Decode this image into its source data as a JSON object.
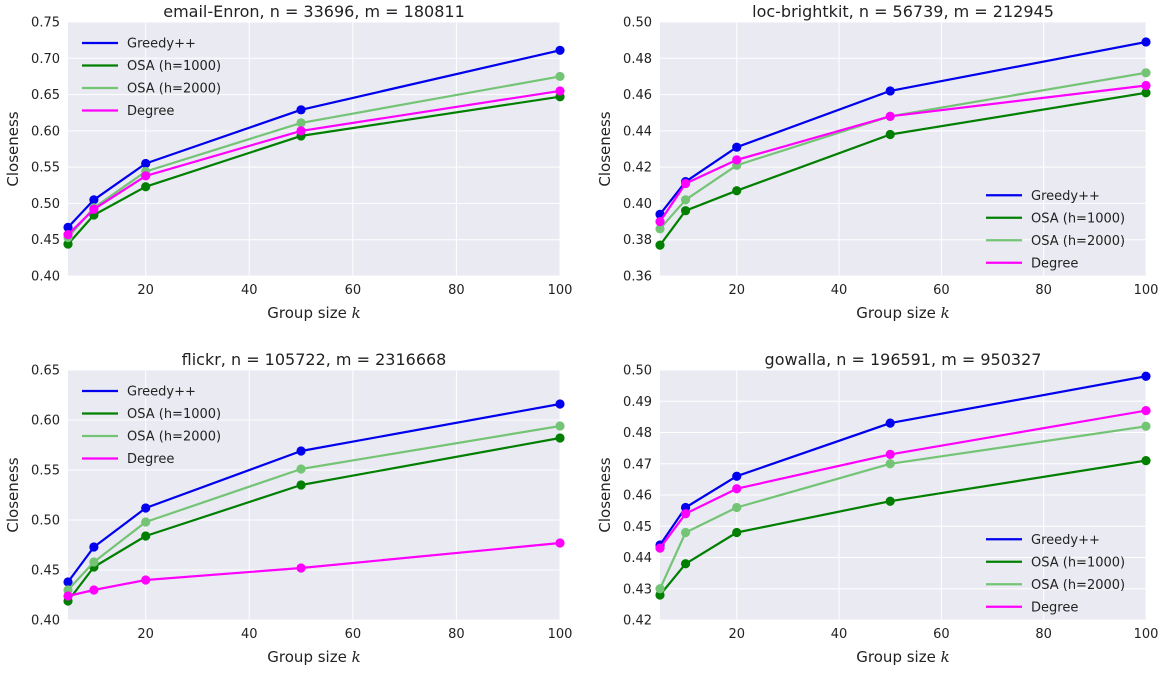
{
  "chart_data": [
    {
      "type": "line",
      "title": "email-Enron,  n = 33696, m = 180811",
      "xlabel": "Group size",
      "xlabel_var": "k",
      "ylabel": "Closeness",
      "xlim": [
        5,
        100
      ],
      "ylim": [
        0.4,
        0.75
      ],
      "xticks": [
        "20",
        "40",
        "60",
        "80",
        "100"
      ],
      "yticks": [
        "0.40",
        "0.45",
        "0.50",
        "0.55",
        "0.60",
        "0.65",
        "0.70",
        "0.75"
      ],
      "grid": true,
      "legend_position": "top-left",
      "x": [
        5,
        10,
        20,
        50,
        100
      ],
      "series": [
        {
          "name": "Greedy++",
          "color": "#0000ee",
          "values": [
            0.467,
            0.505,
            0.555,
            0.629,
            0.711
          ]
        },
        {
          "name": "OSA (h=1000)",
          "color": "#007f00",
          "values": [
            0.444,
            0.484,
            0.523,
            0.593,
            0.647
          ]
        },
        {
          "name": "OSA (h=2000)",
          "color": "#74c476",
          "values": [
            0.453,
            0.494,
            0.544,
            0.611,
            0.675
          ]
        },
        {
          "name": "Degree",
          "color": "#ff00ff",
          "values": [
            0.457,
            0.492,
            0.538,
            0.6,
            0.655
          ]
        }
      ]
    },
    {
      "type": "line",
      "title": "loc-brightkit,  n = 56739, m = 212945",
      "xlabel": "Group size",
      "xlabel_var": "k",
      "ylabel": "Closeness",
      "xlim": [
        5,
        100
      ],
      "ylim": [
        0.36,
        0.5
      ],
      "xticks": [
        "20",
        "40",
        "60",
        "80",
        "100"
      ],
      "yticks": [
        "0.36",
        "0.38",
        "0.40",
        "0.42",
        "0.44",
        "0.46",
        "0.48",
        "0.50"
      ],
      "grid": true,
      "legend_position": "bottom-right",
      "x": [
        5,
        10,
        20,
        50,
        100
      ],
      "series": [
        {
          "name": "Greedy++",
          "color": "#0000ee",
          "values": [
            0.394,
            0.412,
            0.431,
            0.462,
            0.489
          ]
        },
        {
          "name": "OSA (h=1000)",
          "color": "#007f00",
          "values": [
            0.377,
            0.396,
            0.407,
            0.438,
            0.461
          ]
        },
        {
          "name": "OSA (h=2000)",
          "color": "#74c476",
          "values": [
            0.386,
            0.402,
            0.421,
            0.448,
            0.472
          ]
        },
        {
          "name": "Degree",
          "color": "#ff00ff",
          "values": [
            0.39,
            0.411,
            0.424,
            0.448,
            0.465
          ]
        }
      ]
    },
    {
      "type": "line",
      "title": "flickr,  n = 105722, m = 2316668",
      "xlabel": "Group size",
      "xlabel_var": "k",
      "ylabel": "Closeness",
      "xlim": [
        5,
        100
      ],
      "ylim": [
        0.4,
        0.65
      ],
      "xticks": [
        "20",
        "40",
        "60",
        "80",
        "100"
      ],
      "yticks": [
        "0.40",
        "0.45",
        "0.50",
        "0.55",
        "0.60",
        "0.65"
      ],
      "grid": true,
      "legend_position": "top-left",
      "x": [
        5,
        10,
        20,
        50,
        100
      ],
      "series": [
        {
          "name": "Greedy++",
          "color": "#0000ee",
          "values": [
            0.438,
            0.473,
            0.512,
            0.569,
            0.616
          ]
        },
        {
          "name": "OSA (h=1000)",
          "color": "#007f00",
          "values": [
            0.419,
            0.453,
            0.484,
            0.535,
            0.582
          ]
        },
        {
          "name": "OSA (h=2000)",
          "color": "#74c476",
          "values": [
            0.43,
            0.458,
            0.498,
            0.551,
            0.594
          ]
        },
        {
          "name": "Degree",
          "color": "#ff00ff",
          "values": [
            0.424,
            0.43,
            0.44,
            0.452,
            0.477
          ]
        }
      ]
    },
    {
      "type": "line",
      "title": "gowalla,  n = 196591, m = 950327",
      "xlabel": "Group size",
      "xlabel_var": "k",
      "ylabel": "Closeness",
      "xlim": [
        5,
        100
      ],
      "ylim": [
        0.42,
        0.5
      ],
      "xticks": [
        "20",
        "40",
        "60",
        "80",
        "100"
      ],
      "yticks": [
        "0.42",
        "0.43",
        "0.44",
        "0.45",
        "0.46",
        "0.47",
        "0.48",
        "0.49",
        "0.50"
      ],
      "grid": true,
      "legend_position": "bottom-right",
      "x": [
        5,
        10,
        20,
        50,
        100
      ],
      "series": [
        {
          "name": "Greedy++",
          "color": "#0000ee",
          "values": [
            0.444,
            0.456,
            0.466,
            0.483,
            0.498
          ]
        },
        {
          "name": "OSA (h=1000)",
          "color": "#007f00",
          "values": [
            0.428,
            0.438,
            0.448,
            0.458,
            0.471
          ]
        },
        {
          "name": "OSA (h=2000)",
          "color": "#74c476",
          "values": [
            0.43,
            0.448,
            0.456,
            0.47,
            0.482
          ]
        },
        {
          "name": "Degree",
          "color": "#ff00ff",
          "values": [
            0.443,
            0.454,
            0.462,
            0.473,
            0.487
          ]
        }
      ]
    }
  ]
}
